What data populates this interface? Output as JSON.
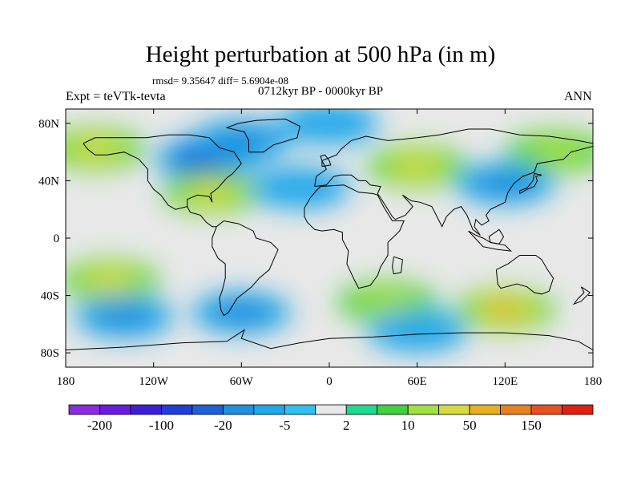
{
  "title": "Height perturbation at 500 hPa (in m)",
  "stats": "rmsd= 9.35647 diff= 5.6904e-08",
  "experiment": "Expt = teVTk-tevta",
  "period": "0712kyr BP - 0000kyr BP",
  "season": "ANN",
  "chart_data": {
    "type": "contour-map",
    "variable": "Height perturbation",
    "level": "500 hPa",
    "units": "m",
    "lon_range": [
      -180,
      180
    ],
    "lat_range": [
      -90,
      90
    ],
    "lon_ticks": [
      {
        "value": -180,
        "label": "180"
      },
      {
        "value": -120,
        "label": "120W"
      },
      {
        "value": -60,
        "label": "60W"
      },
      {
        "value": 0,
        "label": "0"
      },
      {
        "value": 60,
        "label": "60E"
      },
      {
        "value": 120,
        "label": "120E"
      },
      {
        "value": 180,
        "label": "180"
      }
    ],
    "lat_ticks": [
      {
        "value": 80,
        "label": "80N"
      },
      {
        "value": 40,
        "label": "40N"
      },
      {
        "value": 0,
        "label": "0"
      },
      {
        "value": -40,
        "label": "40S"
      },
      {
        "value": -80,
        "label": "80S"
      }
    ],
    "colorbar": {
      "colors": [
        "#8a2be2",
        "#6a1be0",
        "#3c1fd8",
        "#1f3fd6",
        "#1f5fd8",
        "#1f8fe0",
        "#20a8ea",
        "#30c0f0",
        "#e8e8e8",
        "#20d890",
        "#40d040",
        "#a0e040",
        "#d8d840",
        "#e8b020",
        "#e88020",
        "#e85020",
        "#e02010"
      ],
      "labels": [
        "-200",
        "-100",
        "-20",
        "-5",
        "2",
        "10",
        "50",
        "150"
      ],
      "label_boundaries": [
        1,
        3,
        5,
        7,
        9,
        11,
        13,
        15
      ]
    },
    "anomalies": [
      {
        "lon": -75,
        "lat": 60,
        "level": -3
      },
      {
        "lon": -85,
        "lat": 55,
        "level": -4
      },
      {
        "lon": -60,
        "lat": 68,
        "level": -2
      },
      {
        "lon": 60,
        "lat": 50,
        "level": 3
      },
      {
        "lon": -80,
        "lat": 32,
        "level": 3
      },
      {
        "lon": -160,
        "lat": 62,
        "level": 3
      },
      {
        "lon": 155,
        "lat": 60,
        "level": 2
      },
      {
        "lon": 120,
        "lat": 38,
        "level": -2
      },
      {
        "lon": -20,
        "lat": 35,
        "level": -1
      },
      {
        "lon": -60,
        "lat": -52,
        "level": -2
      },
      {
        "lon": -150,
        "lat": -30,
        "level": 3
      },
      {
        "lon": -140,
        "lat": -55,
        "level": -2
      },
      {
        "lon": 120,
        "lat": -50,
        "level": 4
      },
      {
        "lon": 40,
        "lat": -45,
        "level": 2
      },
      {
        "lon": 60,
        "lat": -65,
        "level": -1
      },
      {
        "lon": 0,
        "lat": 80,
        "level": -1
      }
    ]
  }
}
